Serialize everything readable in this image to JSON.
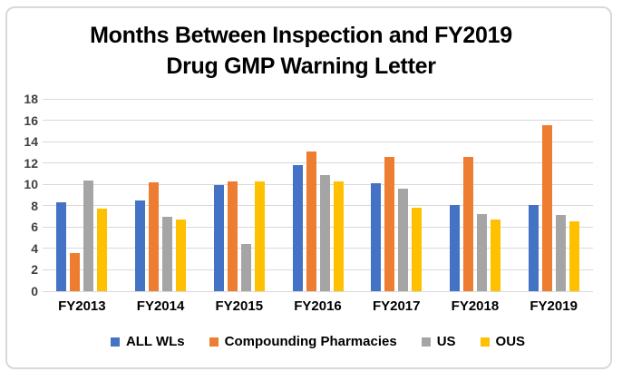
{
  "chart_data": {
    "type": "bar",
    "title": "Months Between Inspection and FY2019 Drug GMP Warning Letter",
    "title_lines": [
      "Months Between Inspection and FY2019",
      "Drug GMP Warning Letter"
    ],
    "categories": [
      "FY2013",
      "FY2014",
      "FY2015",
      "FY2016",
      "FY2017",
      "FY2018",
      "FY2019"
    ],
    "series": [
      {
        "name": "ALL WLs",
        "color": "#4472C4",
        "values": [
          8.3,
          8.5,
          9.9,
          11.8,
          10.1,
          8.1,
          8.1
        ]
      },
      {
        "name": "Compounding Pharmacies",
        "color": "#ED7D31",
        "values": [
          3.6,
          10.2,
          10.3,
          13.1,
          12.6,
          12.6,
          15.5
        ]
      },
      {
        "name": "US",
        "color": "#A5A5A5",
        "values": [
          10.4,
          7.0,
          4.4,
          10.9,
          9.6,
          7.2,
          7.1
        ]
      },
      {
        "name": "OUS",
        "color": "#FFC000",
        "values": [
          7.7,
          6.7,
          10.3,
          10.3,
          7.8,
          6.7,
          6.5
        ]
      }
    ],
    "xlabel": "",
    "ylabel": "",
    "ylim": [
      0,
      18
    ],
    "ytick_step": 2,
    "grid": true,
    "legend_position": "bottom"
  },
  "colors": {
    "background": "#ffffff",
    "frame_border": "#d9d9d9",
    "grid": "#d9d9d9",
    "title_text": "#000000",
    "axis_tick_text": "#404040",
    "category_text": "#000000"
  }
}
